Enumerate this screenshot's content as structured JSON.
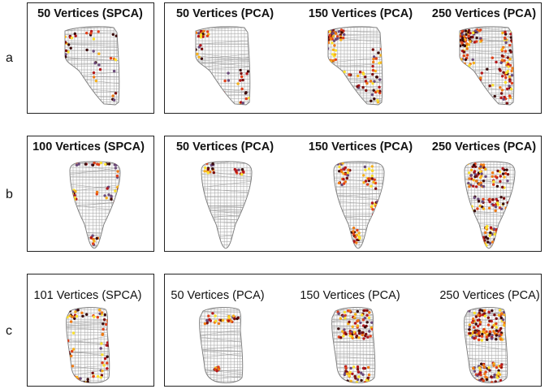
{
  "rows": [
    {
      "label": "a",
      "panels": [
        {
          "title": "50 Vertices (SPCA)",
          "bold": true
        },
        {
          "title": "50 Vertices (PCA)",
          "bold": true
        },
        {
          "title": "150 Vertices (PCA)",
          "bold": true
        },
        {
          "title": "250 Vertices (PCA)",
          "bold": true
        }
      ]
    },
    {
      "label": "b",
      "panels": [
        {
          "title": "100 Vertices (SPCA)",
          "bold": true
        },
        {
          "title": "50 Vertices (PCA)",
          "bold": true
        },
        {
          "title": "150 Vertices (PCA)",
          "bold": true
        },
        {
          "title": "250 Vertices (PCA)",
          "bold": true
        }
      ]
    },
    {
      "label": "c",
      "panels": [
        {
          "title": "101 Vertices (SPCA)",
          "bold": false
        },
        {
          "title": "50 Vertices (PCA)",
          "bold": false
        },
        {
          "title": "150 Vertices (PCA)",
          "bold": false
        },
        {
          "title": "250 Vertices (PCA)",
          "bold": false
        }
      ]
    }
  ],
  "colors": {
    "mesh": "#9b9b9b",
    "vertex_palette": [
      "#3a0a0a",
      "#7a0d0d",
      "#b3171b",
      "#e0401a",
      "#f07a14",
      "#f7b21b",
      "#fbe12c",
      "#6b4a7a"
    ]
  }
}
